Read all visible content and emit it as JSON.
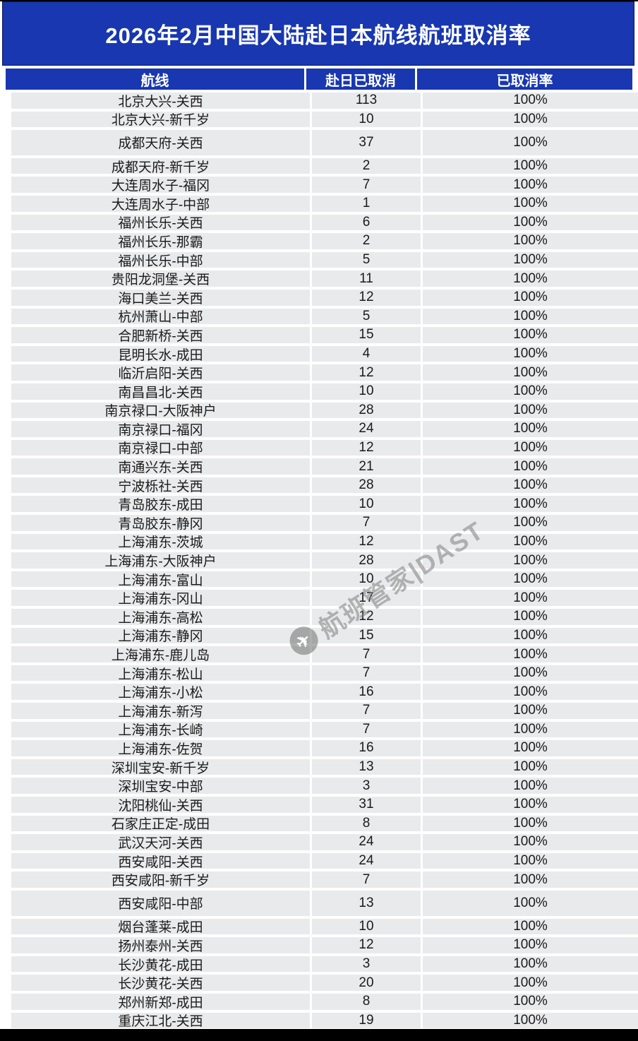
{
  "page": {
    "title": "2026年2月中国大陆赴日本航线航班取消率"
  },
  "colors": {
    "header_blue": "#1837b0",
    "row_gray": "#e9eaec",
    "footer_black": "#000000",
    "title_text": "#ffffff"
  },
  "watermark": {
    "icon": "paper-plane-icon",
    "text": "航班管家|DAST"
  },
  "chart_data": {
    "type": "table",
    "title": "2026年2月中国大陆赴日本航线航班取消率",
    "columns": [
      "航线",
      "赴日已取消",
      "已取消率"
    ],
    "rows": [
      [
        "北京大兴-关西",
        113,
        "100%"
      ],
      [
        "北京大兴-新千岁",
        10,
        "100%"
      ],
      [
        "成都天府-关西",
        37,
        "100%"
      ],
      [
        "成都天府-新千岁",
        2,
        "100%"
      ],
      [
        "大连周水子-福冈",
        7,
        "100%"
      ],
      [
        "大连周水子-中部",
        1,
        "100%"
      ],
      [
        "福州长乐-关西",
        6,
        "100%"
      ],
      [
        "福州长乐-那霸",
        2,
        "100%"
      ],
      [
        "福州长乐-中部",
        5,
        "100%"
      ],
      [
        "贵阳龙洞堡-关西",
        11,
        "100%"
      ],
      [
        "海口美兰-关西",
        12,
        "100%"
      ],
      [
        "杭州萧山-中部",
        5,
        "100%"
      ],
      [
        "合肥新桥-关西",
        15,
        "100%"
      ],
      [
        "昆明长水-成田",
        4,
        "100%"
      ],
      [
        "临沂启阳-关西",
        12,
        "100%"
      ],
      [
        "南昌昌北-关西",
        10,
        "100%"
      ],
      [
        "南京禄口-大阪神户",
        28,
        "100%"
      ],
      [
        "南京禄口-福冈",
        24,
        "100%"
      ],
      [
        "南京禄口-中部",
        12,
        "100%"
      ],
      [
        "南通兴东-关西",
        21,
        "100%"
      ],
      [
        "宁波栎社-关西",
        28,
        "100%"
      ],
      [
        "青岛胶东-成田",
        10,
        "100%"
      ],
      [
        "青岛胶东-静冈",
        7,
        "100%"
      ],
      [
        "上海浦东-茨城",
        12,
        "100%"
      ],
      [
        "上海浦东-大阪神户",
        28,
        "100%"
      ],
      [
        "上海浦东-富山",
        10,
        "100%"
      ],
      [
        "上海浦东-冈山",
        17,
        "100%"
      ],
      [
        "上海浦东-高松",
        12,
        "100%"
      ],
      [
        "上海浦东-静冈",
        15,
        "100%"
      ],
      [
        "上海浦东-鹿儿岛",
        7,
        "100%"
      ],
      [
        "上海浦东-松山",
        7,
        "100%"
      ],
      [
        "上海浦东-小松",
        16,
        "100%"
      ],
      [
        "上海浦东-新泻",
        7,
        "100%"
      ],
      [
        "上海浦东-长崎",
        7,
        "100%"
      ],
      [
        "上海浦东-佐贺",
        16,
        "100%"
      ],
      [
        "深圳宝安-新千岁",
        13,
        "100%"
      ],
      [
        "深圳宝安-中部",
        3,
        "100%"
      ],
      [
        "沈阳桃仙-关西",
        31,
        "100%"
      ],
      [
        "石家庄正定-成田",
        8,
        "100%"
      ],
      [
        "武汉天河-关西",
        24,
        "100%"
      ],
      [
        "西安咸阳-关西",
        24,
        "100%"
      ],
      [
        "西安咸阳-新千岁",
        7,
        "100%"
      ],
      [
        "西安咸阳-中部",
        13,
        "100%"
      ],
      [
        "烟台蓬莱-成田",
        10,
        "100%"
      ],
      [
        "扬州泰州-关西",
        12,
        "100%"
      ],
      [
        "长沙黄花-成田",
        3,
        "100%"
      ],
      [
        "长沙黄花-关西",
        20,
        "100%"
      ],
      [
        "郑州新郑-成田",
        8,
        "100%"
      ],
      [
        "重庆江北-关西",
        19,
        "100%"
      ]
    ],
    "layout_hints": {
      "tall_row_indices": [
        2,
        42
      ],
      "grid": false,
      "all_rates_value": "100%"
    }
  }
}
